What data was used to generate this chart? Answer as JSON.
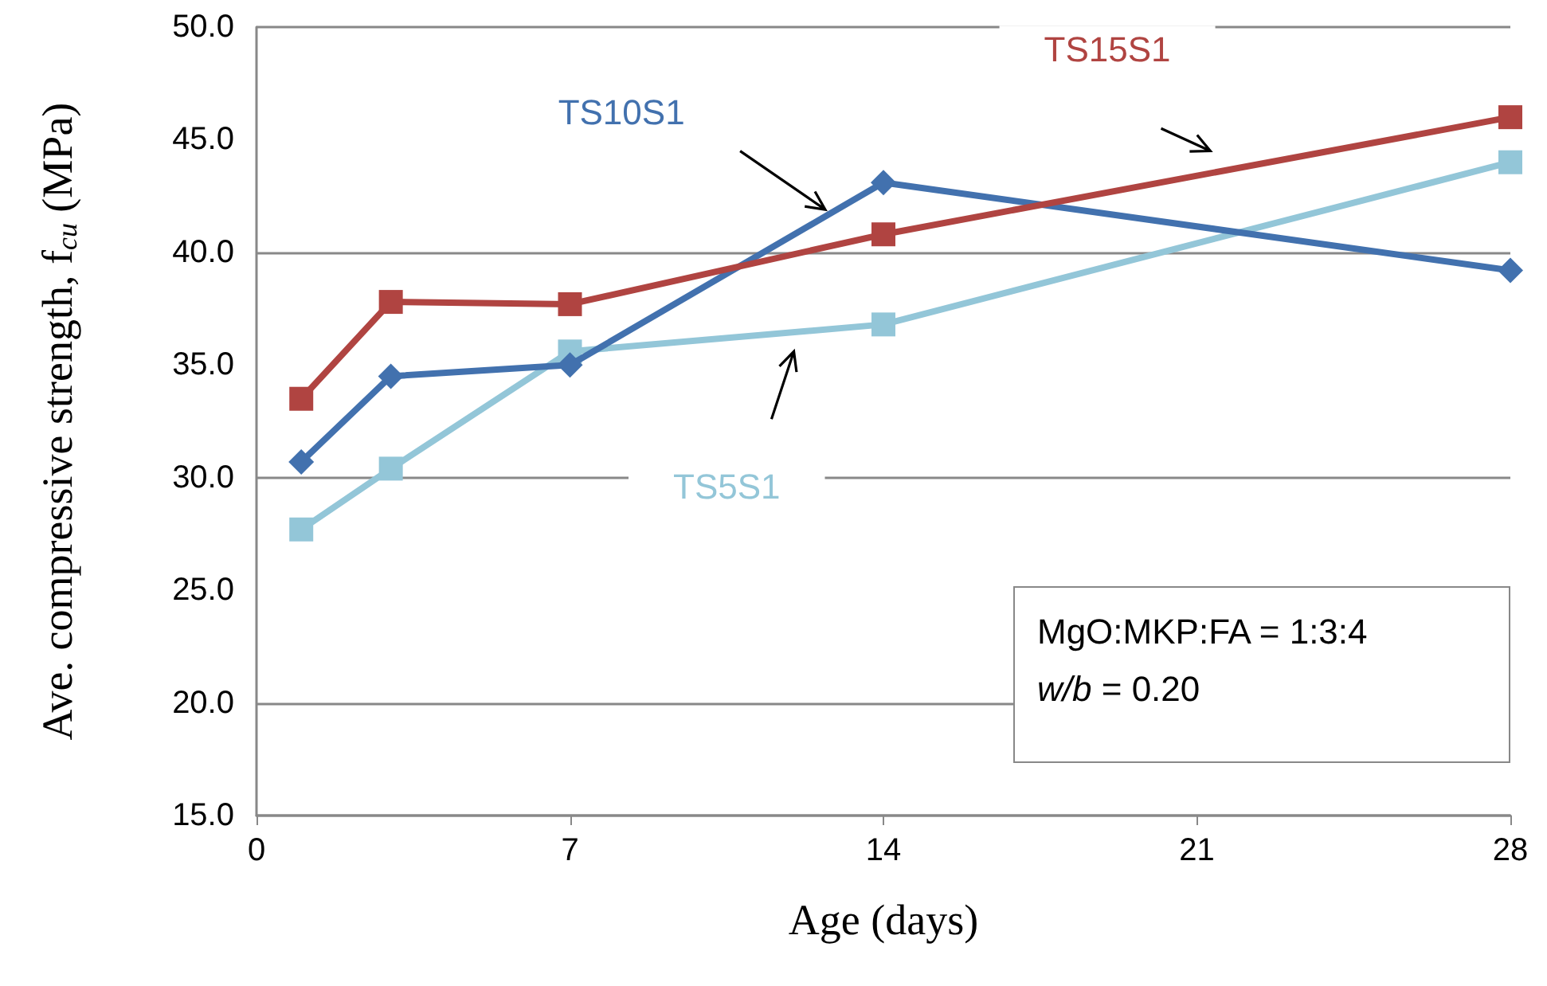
{
  "chart_data": {
    "type": "line",
    "xlabel": "Age (days)",
    "ylabel": "Ave. compressive strength, f$_{cu}$ (MPa)",
    "x": [
      1,
      3,
      7,
      14,
      28
    ],
    "series": [
      {
        "name": "TS5S1",
        "color": "#93c6d8",
        "marker": "square",
        "values": [
          27.7,
          30.4,
          35.6,
          36.8,
          44.0
        ]
      },
      {
        "name": "TS10S1",
        "color": "#4271ae",
        "marker": "diamond",
        "values": [
          30.7,
          34.5,
          35.0,
          43.1,
          39.2
        ]
      },
      {
        "name": "TS15S1",
        "color": "#b04441",
        "marker": "square",
        "values": [
          33.5,
          37.8,
          37.7,
          40.8,
          46.0
        ]
      }
    ],
    "xlim": [
      0,
      28
    ],
    "xticks": [
      0,
      7,
      14,
      21,
      28
    ],
    "ylim": [
      15,
      50
    ],
    "yticks": [
      {
        "value": 15,
        "label": "15.0"
      },
      {
        "value": 20,
        "label": "20.0"
      },
      {
        "value": 25,
        "label": "25.0"
      },
      {
        "value": 30,
        "label": "30.0"
      },
      {
        "value": 35,
        "label": "35.0"
      },
      {
        "value": 40,
        "label": "40.0"
      },
      {
        "value": 45,
        "label": "45.0"
      },
      {
        "value": 50,
        "label": "50.0"
      }
    ],
    "grid": "y",
    "legend": false,
    "line_style": "solid",
    "annotations": [
      "MgO:MKP:FA = 1:3:4",
      "w/b = 0.20"
    ]
  }
}
